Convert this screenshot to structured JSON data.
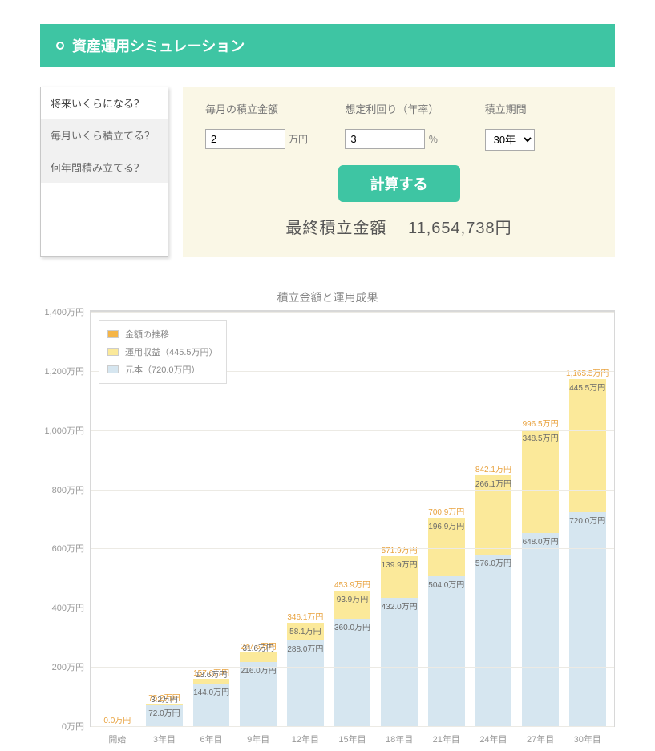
{
  "header": {
    "title": "資産運用シミュレーション"
  },
  "tabs": {
    "items": [
      {
        "label": "将来いくらになる？",
        "active": true
      },
      {
        "label": "毎月いくら積立てる？",
        "active": false
      },
      {
        "label": "何年間積み立てる？",
        "active": false
      }
    ]
  },
  "form": {
    "monthly": {
      "label": "毎月の積立金額",
      "value": "2",
      "unit": "万円"
    },
    "rate": {
      "label": "想定利回り（年率）",
      "value": "3",
      "unit": "％"
    },
    "period": {
      "label": "積立期間",
      "value": "30年"
    },
    "button": "計算する",
    "result_label": "最終積立金額",
    "result_value": "11,654,738円"
  },
  "chart": {
    "title": "積立金額と運用成果",
    "type": "stacked-bar",
    "y": {
      "min": 0,
      "max": 1400,
      "ticks": [
        0,
        200,
        400,
        600,
        800,
        1000,
        1200,
        1400
      ],
      "unit_suffix": "万円"
    },
    "colors": {
      "principal": "#d6e6f0",
      "returns": "#fbe99a",
      "total_label": "#e8a23e",
      "value_label": "#6a6a6a",
      "grid": "#eceae4",
      "axis": "#d8d8d8",
      "background": "#ffffff"
    },
    "legend": [
      {
        "label": "金額の推移",
        "swatch": "#f5b547"
      },
      {
        "label": "運用収益（445.5万円）",
        "swatch": "#fbe99a"
      },
      {
        "label": "元本（720.0万円）",
        "swatch": "#d6e6f0"
      }
    ],
    "categories": [
      "開始",
      "3年目",
      "6年目",
      "9年目",
      "12年目",
      "15年目",
      "18年目",
      "21年目",
      "24年目",
      "27年目",
      "30年目"
    ],
    "series": {
      "principal": [
        0,
        72.0,
        144.0,
        216.0,
        288.0,
        360.0,
        432.0,
        504.0,
        576.0,
        648.0,
        720.0
      ],
      "returns": [
        0,
        3.2,
        13.6,
        31.6,
        58.1,
        93.9,
        139.9,
        196.9,
        266.1,
        348.5,
        445.5
      ],
      "total": [
        0,
        75.2,
        157.6,
        247.6,
        346.1,
        453.9,
        571.9,
        700.9,
        842.1,
        996.5,
        1165.5
      ]
    },
    "value_unit": "万円"
  }
}
